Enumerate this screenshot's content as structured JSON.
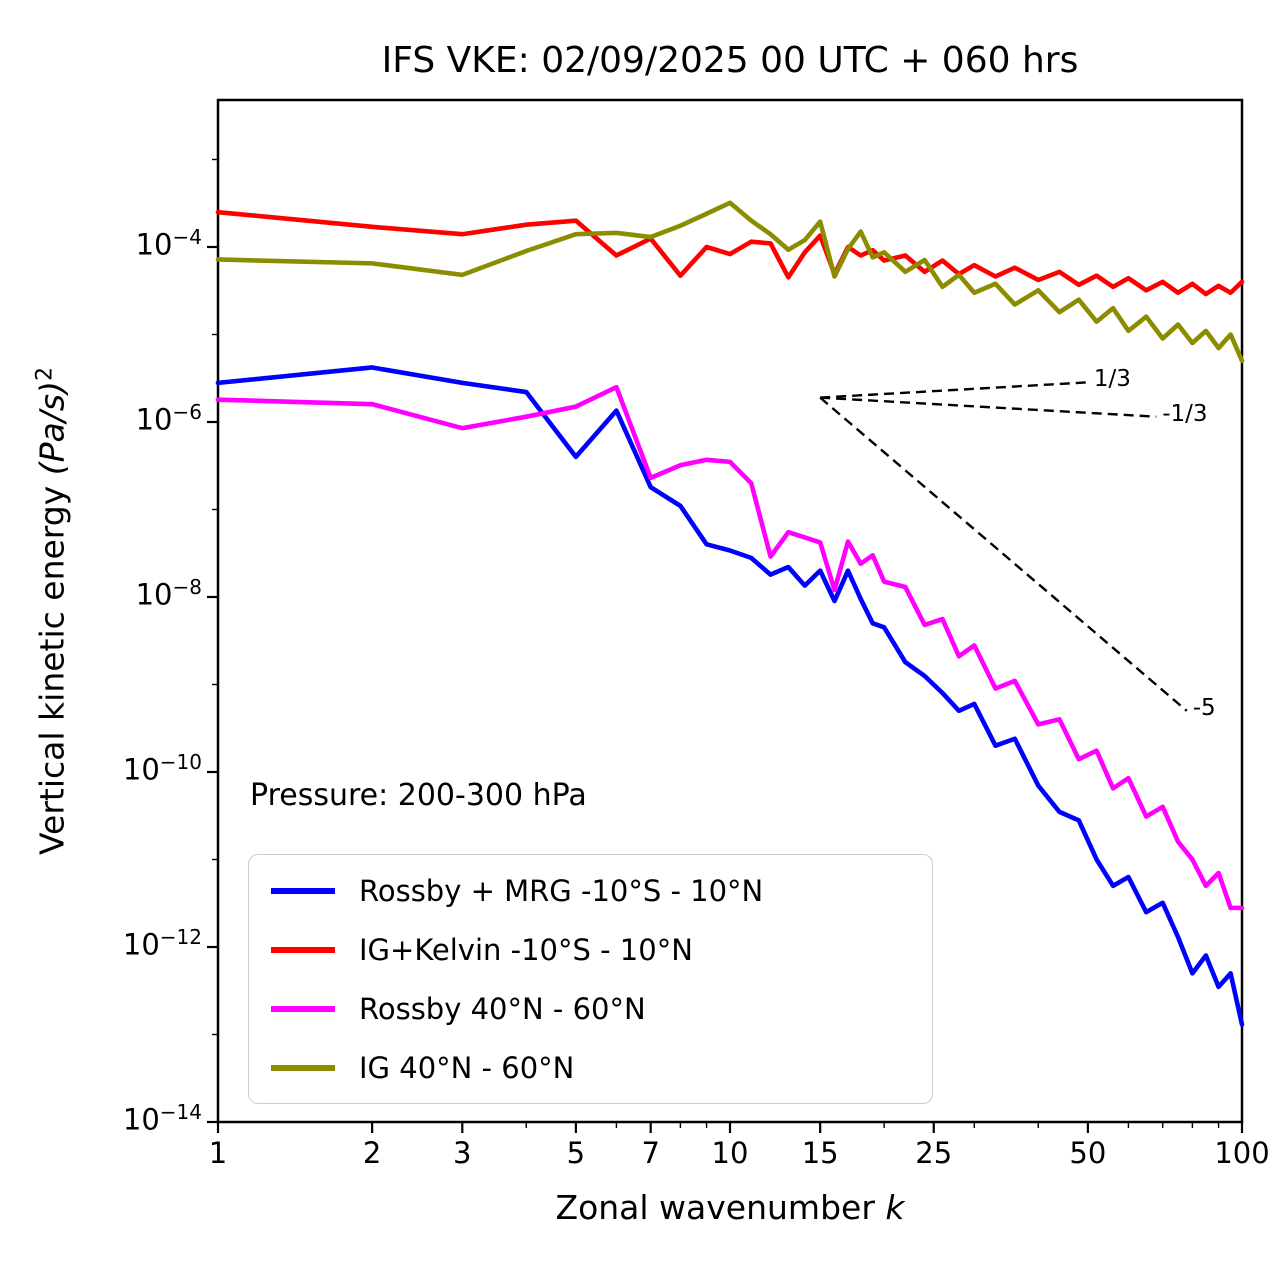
{
  "title": "IFS VKE: 02/09/2025 00 UTC + 060 hrs",
  "axes": {
    "xlabel": {
      "prefix": "Zonal wavenumber ",
      "math": "k"
    },
    "ylabel": {
      "prefix": "Vertical kinetic energy ",
      "math": "(Pa/s)",
      "sup": "2"
    }
  },
  "pressure_note": "Pressure: 200-300 hPa",
  "legend": {
    "entries": [
      {
        "label": "Rossby + MRG -10°S - 10°N",
        "color": "#0000ff"
      },
      {
        "label": "IG+Kelvin -10°S - 10°N",
        "color": "#ff0000"
      },
      {
        "label": "Rossby 40°N - 60°N",
        "color": "#ff00ff"
      },
      {
        "label": "IG 40°N - 60°N",
        "color": "#8c8c00"
      }
    ]
  },
  "chart_data": {
    "type": "line",
    "xscale": "log",
    "yscale": "log",
    "title": "IFS VKE: 02/09/2025 00 UTC + 060 hrs",
    "xlabel": "Zonal wavenumber k",
    "ylabel": "Vertical kinetic energy (Pa/s)^2",
    "xlim": [
      1,
      100
    ],
    "ylim": [
      1e-14,
      0.0048
    ],
    "x_ticks": [
      1,
      2,
      3,
      5,
      7,
      10,
      15,
      25,
      50,
      100
    ],
    "x_minor_ticks": [
      4,
      6,
      8,
      9,
      20,
      30,
      40,
      60,
      70,
      80,
      90
    ],
    "y_tick_exponents": [
      -4,
      -6,
      -8,
      -10,
      -12,
      -14
    ],
    "y_minor_tick_exponents": [
      -3,
      -5,
      -7,
      -9,
      -11,
      -13
    ],
    "grid": false,
    "legend_position": "lower left",
    "x": [
      1,
      2,
      3,
      4,
      5,
      6,
      7,
      8,
      9,
      10,
      11,
      12,
      13,
      14,
      15,
      16,
      17,
      18,
      19,
      20,
      22,
      24,
      26,
      28,
      30,
      33,
      36,
      40,
      44,
      48,
      52,
      56,
      60,
      65,
      70,
      75,
      80,
      85,
      90,
      95,
      100
    ],
    "series": [
      {
        "name": "Rossby + MRG -10°S - 10°N",
        "color": "#0000ff",
        "values": [
          2.8e-06,
          4.2e-06,
          2.8e-06,
          2.2e-06,
          4e-07,
          1.35e-06,
          1.8e-07,
          1.1e-07,
          4e-08,
          3.4e-08,
          2.8e-08,
          1.8e-08,
          2.2e-08,
          1.35e-08,
          2e-08,
          9e-09,
          2e-08,
          9.5e-09,
          5e-09,
          4.5e-09,
          1.8e-09,
          1.25e-09,
          8e-10,
          5e-10,
          6e-10,
          2e-10,
          2.4e-10,
          7e-11,
          3.5e-11,
          2.8e-11,
          1e-11,
          5e-12,
          6.3e-12,
          2.5e-12,
          3.2e-12,
          1.3e-12,
          5e-13,
          8e-13,
          3.5e-13,
          5e-13,
          1.3e-13
        ]
      },
      {
        "name": "IG+Kelvin -10°S - 10°N",
        "color": "#ff0000",
        "values": [
          0.00025,
          0.00017,
          0.00014,
          0.00018,
          0.0002,
          8e-05,
          0.000125,
          4.7e-05,
          0.0001,
          8.3e-05,
          0.000115,
          0.00011,
          4.5e-05,
          8.7e-05,
          0.000135,
          4.9e-05,
          0.0001,
          8e-05,
          9.2e-05,
          7e-05,
          8e-05,
          5.2e-05,
          7e-05,
          4.9e-05,
          6.2e-05,
          4.6e-05,
          5.8e-05,
          4.2e-05,
          5.2e-05,
          3.7e-05,
          4.7e-05,
          3.5e-05,
          4.4e-05,
          3.2e-05,
          4e-05,
          3e-05,
          3.8e-05,
          2.9e-05,
          3.6e-05,
          3e-05,
          4e-05
        ]
      },
      {
        "name": "Rossby 40°N - 60°N",
        "color": "#ff00ff",
        "values": [
          1.8e-06,
          1.6e-06,
          8.5e-07,
          1.15e-06,
          1.5e-06,
          2.5e-06,
          2.3e-07,
          3.2e-07,
          3.7e-07,
          3.5e-07,
          2e-07,
          2.9e-08,
          5.5e-08,
          4.8e-08,
          4.2e-08,
          1.2e-08,
          4.3e-08,
          2.4e-08,
          3e-08,
          1.5e-08,
          1.3e-08,
          4.8e-09,
          5.6e-09,
          2.1e-09,
          2.8e-09,
          9e-10,
          1.1e-09,
          3.5e-10,
          4e-10,
          1.4e-10,
          1.75e-10,
          6.5e-11,
          8.5e-11,
          3.1e-11,
          4e-11,
          1.6e-11,
          1e-11,
          5e-12,
          7e-12,
          2.8e-12,
          2.8e-12
        ]
      },
      {
        "name": "IG 40°N - 60°N",
        "color": "#8c8c00",
        "values": [
          7.2e-05,
          6.5e-05,
          4.8e-05,
          9e-05,
          0.00014,
          0.000145,
          0.00013,
          0.000175,
          0.00024,
          0.00032,
          0.0002,
          0.00014,
          9.3e-05,
          0.00012,
          0.000195,
          4.6e-05,
          9.5e-05,
          0.00015,
          7.6e-05,
          8.7e-05,
          5.2e-05,
          7.1e-05,
          3.5e-05,
          4.8e-05,
          3e-05,
          3.8e-05,
          2.2e-05,
          3.2e-05,
          1.8e-05,
          2.5e-05,
          1.4e-05,
          2e-05,
          1.1e-05,
          1.6e-05,
          9e-06,
          1.3e-05,
          8e-06,
          1.1e-05,
          7e-06,
          1e-05,
          5e-06
        ]
      }
    ],
    "reference_lines": [
      {
        "label": "1/3",
        "slope": 0.3333,
        "k": [
          15,
          50
        ],
        "v": [
          1.9e-06,
          2.84e-06
        ]
      },
      {
        "label": "-1/3",
        "slope": -0.3333,
        "k": [
          15,
          68
        ],
        "v": [
          1.9e-06,
          1.15e-06
        ]
      },
      {
        "label": "-5",
        "slope": -5,
        "k": [
          15,
          78
        ],
        "v": [
          1.9e-06,
          5e-10
        ]
      }
    ],
    "annotations": [
      "Pressure: 200-300 hPa"
    ]
  }
}
